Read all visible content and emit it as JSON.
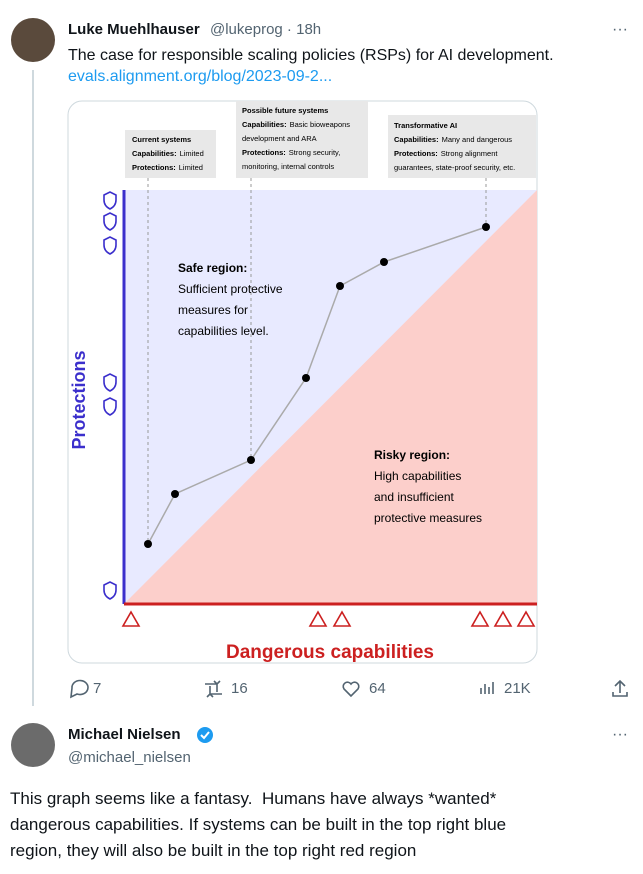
{
  "tweet": {
    "name": "Luke Muehlhauser",
    "handle": "@lukeprog · 18h",
    "text": "The case for responsible scaling policies (RSPs) for AI development.",
    "link": "evals.alignment.org/blog/2023-09-2...",
    "image": {
      "callouts": [
        {
          "title": "Current systems",
          "rows": [
            {
              "label": "Capabilities:",
              "value": "Limited"
            },
            {
              "label": "Protections:",
              "value": "Limited"
            }
          ]
        },
        {
          "title": "Possible future systems",
          "rows": [
            {
              "label": "Capabilities:",
              "value": "Basic bioweapons"
            },
            {
              "label": "",
              "value": "development and ARA"
            },
            {
              "label": "Protections:",
              "value": "Strong security,"
            },
            {
              "label": "",
              "value": "monitoring, internal controls"
            }
          ]
        },
        {
          "title": "Transformative AI",
          "rows": [
            {
              "label": "Capabilities:",
              "value": "Many and dangerous"
            },
            {
              "label": "Protections:",
              "value": "Strong alignment"
            },
            {
              "label": "",
              "value": "guarantees, state-proof security, etc."
            }
          ]
        }
      ],
      "safe": {
        "title": "Safe region:",
        "lines": [
          "Sufficient protective",
          "measures for",
          "capabilities level."
        ]
      },
      "risky": {
        "title": "Risky region:",
        "lines": [
          "High capabilities",
          "and insufficient",
          "protective measures"
        ]
      },
      "y_label": "Protections",
      "x_label": "Dangerous capabilities"
    },
    "actions": {
      "replies": "7",
      "reposts": "16",
      "likes": "64",
      "views": "21K"
    }
  },
  "reply": {
    "name": "Michael Nielsen",
    "handle": "@michael_nielsen",
    "lines": [
      "This graph seems like a fantasy.  Humans have always *wanted*",
      "dangerous capabilities. If systems can be built in the top right blue",
      "region, they will also be built in the top right red region"
    ]
  }
}
